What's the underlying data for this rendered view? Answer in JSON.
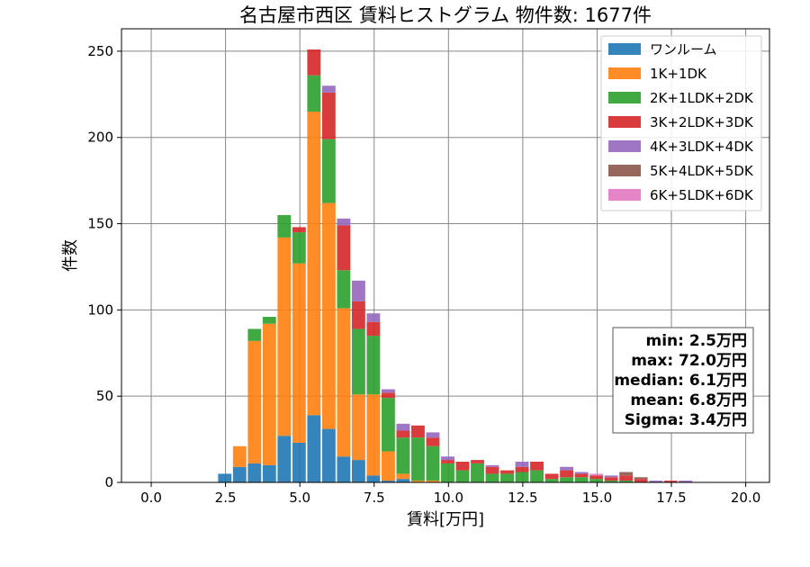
{
  "chart_data": {
    "type": "bar",
    "stacked": true,
    "title": "名古屋市西区 賃料ヒストグラム 物件数: 1677件",
    "xlabel": "賃料[万円]",
    "ylabel": "件数",
    "xlim": [
      -1.0,
      20.8
    ],
    "ylim": [
      0,
      263
    ],
    "xticks": [
      0.0,
      2.5,
      5.0,
      7.5,
      10.0,
      12.5,
      15.0,
      17.5,
      20.0
    ],
    "xtick_labels": [
      "0.0",
      "2.5",
      "5.0",
      "7.5",
      "10.0",
      "12.5",
      "15.0",
      "17.5",
      "20.0"
    ],
    "yticks": [
      0,
      50,
      100,
      150,
      200,
      250
    ],
    "ytick_labels": [
      "0",
      "50",
      "100",
      "150",
      "200",
      "250"
    ],
    "grid": true,
    "legend_position": "top-right",
    "bin_width": 0.5,
    "x": [
      2.5,
      3.0,
      3.5,
      4.0,
      4.5,
      5.0,
      5.5,
      6.0,
      6.5,
      7.0,
      7.5,
      8.0,
      8.5,
      9.0,
      9.5,
      10.0,
      10.5,
      11.0,
      11.5,
      12.0,
      12.5,
      13.0,
      13.5,
      14.0,
      14.5,
      15.0,
      15.5,
      16.0,
      16.5,
      17.0,
      17.5,
      18.0
    ],
    "series": [
      {
        "name": "ワンルーム",
        "color": "#1f77b4",
        "values": [
          5,
          9,
          11,
          10,
          27,
          23,
          39,
          31,
          15,
          13,
          4,
          1,
          2,
          0,
          0,
          0,
          0,
          0,
          0,
          0,
          0,
          0,
          0,
          0,
          0,
          0,
          0,
          0,
          0,
          0,
          0,
          0
        ]
      },
      {
        "name": "1K+1DK",
        "color": "#ff7f0e",
        "values": [
          0,
          12,
          71,
          82,
          115,
          104,
          176,
          131,
          86,
          38,
          47,
          17,
          3,
          1,
          1,
          0,
          0,
          0,
          0,
          0,
          0,
          0,
          0,
          0,
          0,
          0,
          0,
          0,
          0,
          0,
          0,
          0
        ]
      },
      {
        "name": "2K+1LDK+2DK",
        "color": "#2ca02c",
        "values": [
          0,
          0,
          7,
          4,
          13,
          18,
          21,
          37,
          22,
          38,
          34,
          31,
          21,
          25,
          20,
          11,
          7,
          11,
          5,
          5,
          6,
          7,
          2,
          3,
          3,
          2,
          1,
          1,
          0,
          0,
          0,
          0
        ]
      },
      {
        "name": "3K+2LDK+3DK",
        "color": "#d62728",
        "values": [
          0,
          0,
          0,
          0,
          0,
          3,
          15,
          27,
          26,
          16,
          8,
          3,
          4,
          7,
          5,
          2,
          5,
          2,
          4,
          2,
          3,
          5,
          3,
          4,
          2,
          2,
          2,
          3,
          2,
          0,
          1,
          0
        ]
      },
      {
        "name": "4K+3LDK+4DK",
        "color": "#9467bd",
        "values": [
          0,
          0,
          0,
          0,
          0,
          0,
          0,
          4,
          4,
          12,
          5,
          2,
          4,
          0,
          3,
          2,
          0,
          0,
          1,
          0,
          3,
          0,
          0,
          2,
          1,
          0,
          1,
          0,
          0,
          1,
          0,
          1
        ]
      },
      {
        "name": "5K+4LDK+5DK",
        "color": "#8c564b",
        "values": [
          0,
          0,
          0,
          0,
          0,
          0,
          0,
          0,
          0,
          0,
          0,
          0,
          0,
          0,
          0,
          0,
          0,
          0,
          0,
          0,
          0,
          0,
          0,
          0,
          0,
          0,
          0,
          2,
          1,
          0,
          0,
          0
        ]
      },
      {
        "name": "6K+5LDK+6DK",
        "color": "#e377c2",
        "values": [
          0,
          0,
          0,
          0,
          0,
          0,
          0,
          0,
          0,
          0,
          0,
          0,
          0,
          0,
          0,
          0,
          0,
          0,
          0,
          0,
          0,
          0,
          0,
          0,
          0,
          1,
          0,
          0,
          0,
          0,
          0,
          0
        ]
      }
    ],
    "annotation_lines": [
      "min: 2.5万円",
      "max: 72.0万円",
      "median: 6.1万円",
      "mean: 6.8万円",
      "Sigma: 3.4万円"
    ]
  }
}
